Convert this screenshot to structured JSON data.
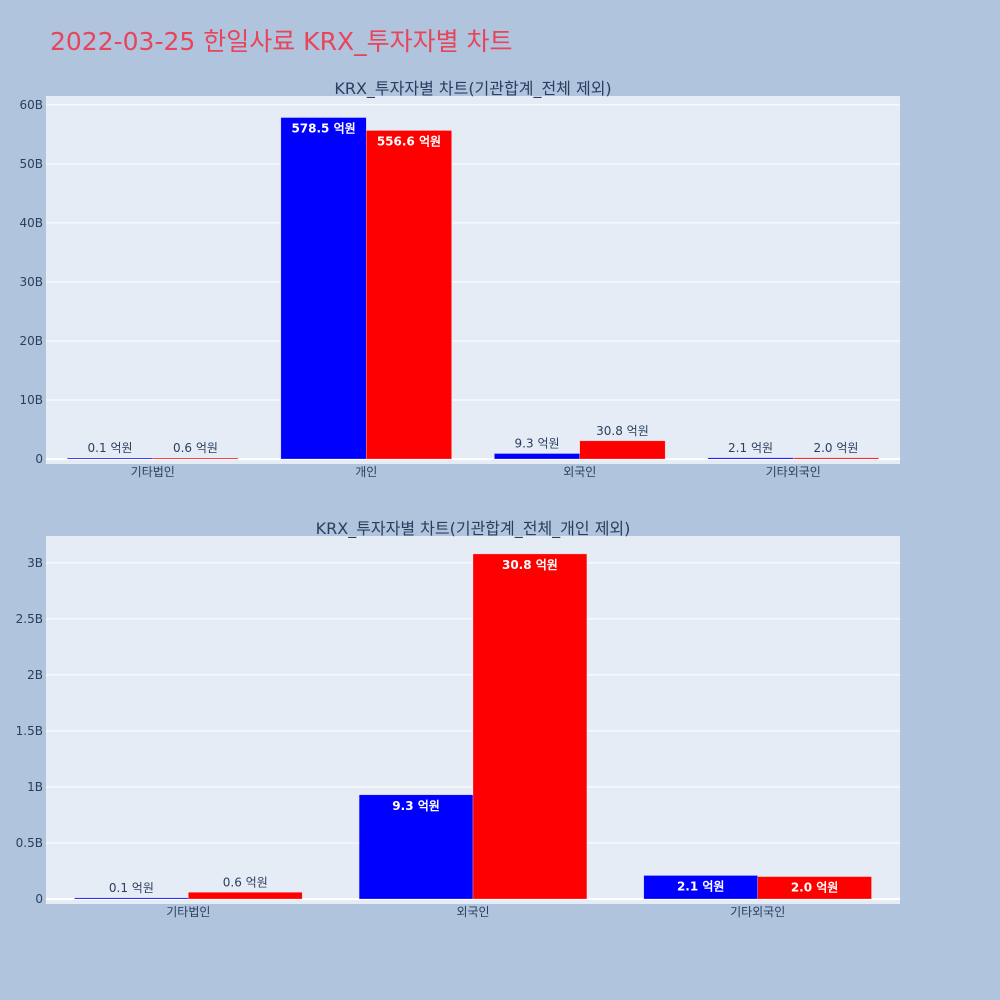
{
  "page_title": "2022-03-25 한일사료 KRX_투자자별 차트",
  "colors": {
    "buy": "#0000ff",
    "sell": "#ff0000",
    "plot_bg": "#e5ecf6",
    "paper_bg": "#b0c4de",
    "title": "#e8445a"
  },
  "chart_data": [
    {
      "type": "bar",
      "title": "KRX_투자자별 차트(기관합계_전체 제외)",
      "categories": [
        "기타법인",
        "개인",
        "외국인",
        "기타외국인"
      ],
      "series": [
        {
          "values": [
            10000000,
            57850000000,
            930000000,
            210000000
          ],
          "labels": [
            "0.1 억원",
            "578.5 억원",
            "9.3 억원",
            "2.1 억원"
          ],
          "color": "#0000ff"
        },
        {
          "values": [
            60000000,
            55660000000,
            3080000000,
            200000000
          ],
          "labels": [
            "0.6 억원",
            "556.6 억원",
            "30.8 억원",
            "2.0 억원"
          ],
          "color": "#ff0000"
        }
      ],
      "ylim": [
        0,
        61500000000
      ],
      "yticks": [
        0,
        10000000000,
        20000000000,
        30000000000,
        40000000000,
        50000000000,
        60000000000
      ],
      "ytick_labels": [
        "0",
        "10B",
        "20B",
        "30B",
        "40B",
        "50B",
        "60B"
      ],
      "grid": true
    },
    {
      "type": "bar",
      "title": "KRX_투자자별 차트(기관합계_전체_개인 제외)",
      "categories": [
        "기타법인",
        "외국인",
        "기타외국인"
      ],
      "series": [
        {
          "values": [
            10000000,
            930000000,
            210000000
          ],
          "labels": [
            "0.1 억원",
            "9.3 억원",
            "2.1 억원"
          ],
          "color": "#0000ff"
        },
        {
          "values": [
            60000000,
            3080000000,
            200000000
          ],
          "labels": [
            "0.6 억원",
            "30.8 억원",
            "2.0 억원"
          ],
          "color": "#ff0000"
        }
      ],
      "ylim": [
        0,
        3240000000
      ],
      "yticks": [
        0,
        500000000,
        1000000000,
        1500000000,
        2000000000,
        2500000000,
        3000000000
      ],
      "ytick_labels": [
        "0",
        "0.5B",
        "1B",
        "1.5B",
        "2B",
        "2.5B",
        "3B"
      ],
      "grid": true
    }
  ]
}
